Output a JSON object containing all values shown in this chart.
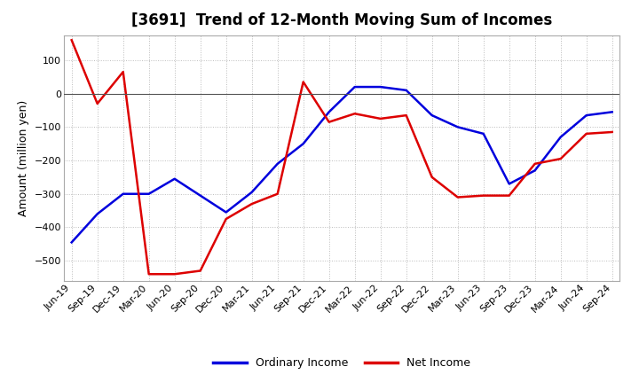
{
  "title": "[3691]  Trend of 12-Month Moving Sum of Incomes",
  "ylabel": "Amount (million yen)",
  "x_labels": [
    "Jun-19",
    "Sep-19",
    "Dec-19",
    "Mar-20",
    "Jun-20",
    "Sep-20",
    "Dec-20",
    "Mar-21",
    "Jun-21",
    "Sep-21",
    "Dec-21",
    "Mar-22",
    "Jun-22",
    "Sep-22",
    "Dec-22",
    "Mar-23",
    "Jun-23",
    "Sep-23",
    "Dec-23",
    "Mar-24",
    "Jun-24",
    "Sep-24"
  ],
  "ordinary_income": [
    -445,
    -360,
    -300,
    -300,
    -255,
    -305,
    -355,
    -295,
    -210,
    -150,
    -55,
    20,
    20,
    10,
    -65,
    -100,
    -120,
    -270,
    -230,
    -130,
    -65,
    -55
  ],
  "net_income": [
    160,
    -30,
    65,
    -540,
    -540,
    -530,
    -375,
    -330,
    -300,
    35,
    -85,
    -60,
    -75,
    -65,
    -250,
    -310,
    -305,
    -305,
    -210,
    -195,
    -120,
    -115
  ],
  "ordinary_color": "#0000dd",
  "net_color": "#dd0000",
  "ylim": [
    -560,
    175
  ],
  "yticks": [
    -500,
    -400,
    -300,
    -200,
    -100,
    0,
    100
  ],
  "background_color": "#ffffff",
  "grid_color": "#bbbbbb",
  "legend_labels": [
    "Ordinary Income",
    "Net Income"
  ],
  "title_fontsize": 12,
  "ylabel_fontsize": 9,
  "tick_fontsize": 8,
  "legend_fontsize": 9,
  "linewidth": 1.8
}
